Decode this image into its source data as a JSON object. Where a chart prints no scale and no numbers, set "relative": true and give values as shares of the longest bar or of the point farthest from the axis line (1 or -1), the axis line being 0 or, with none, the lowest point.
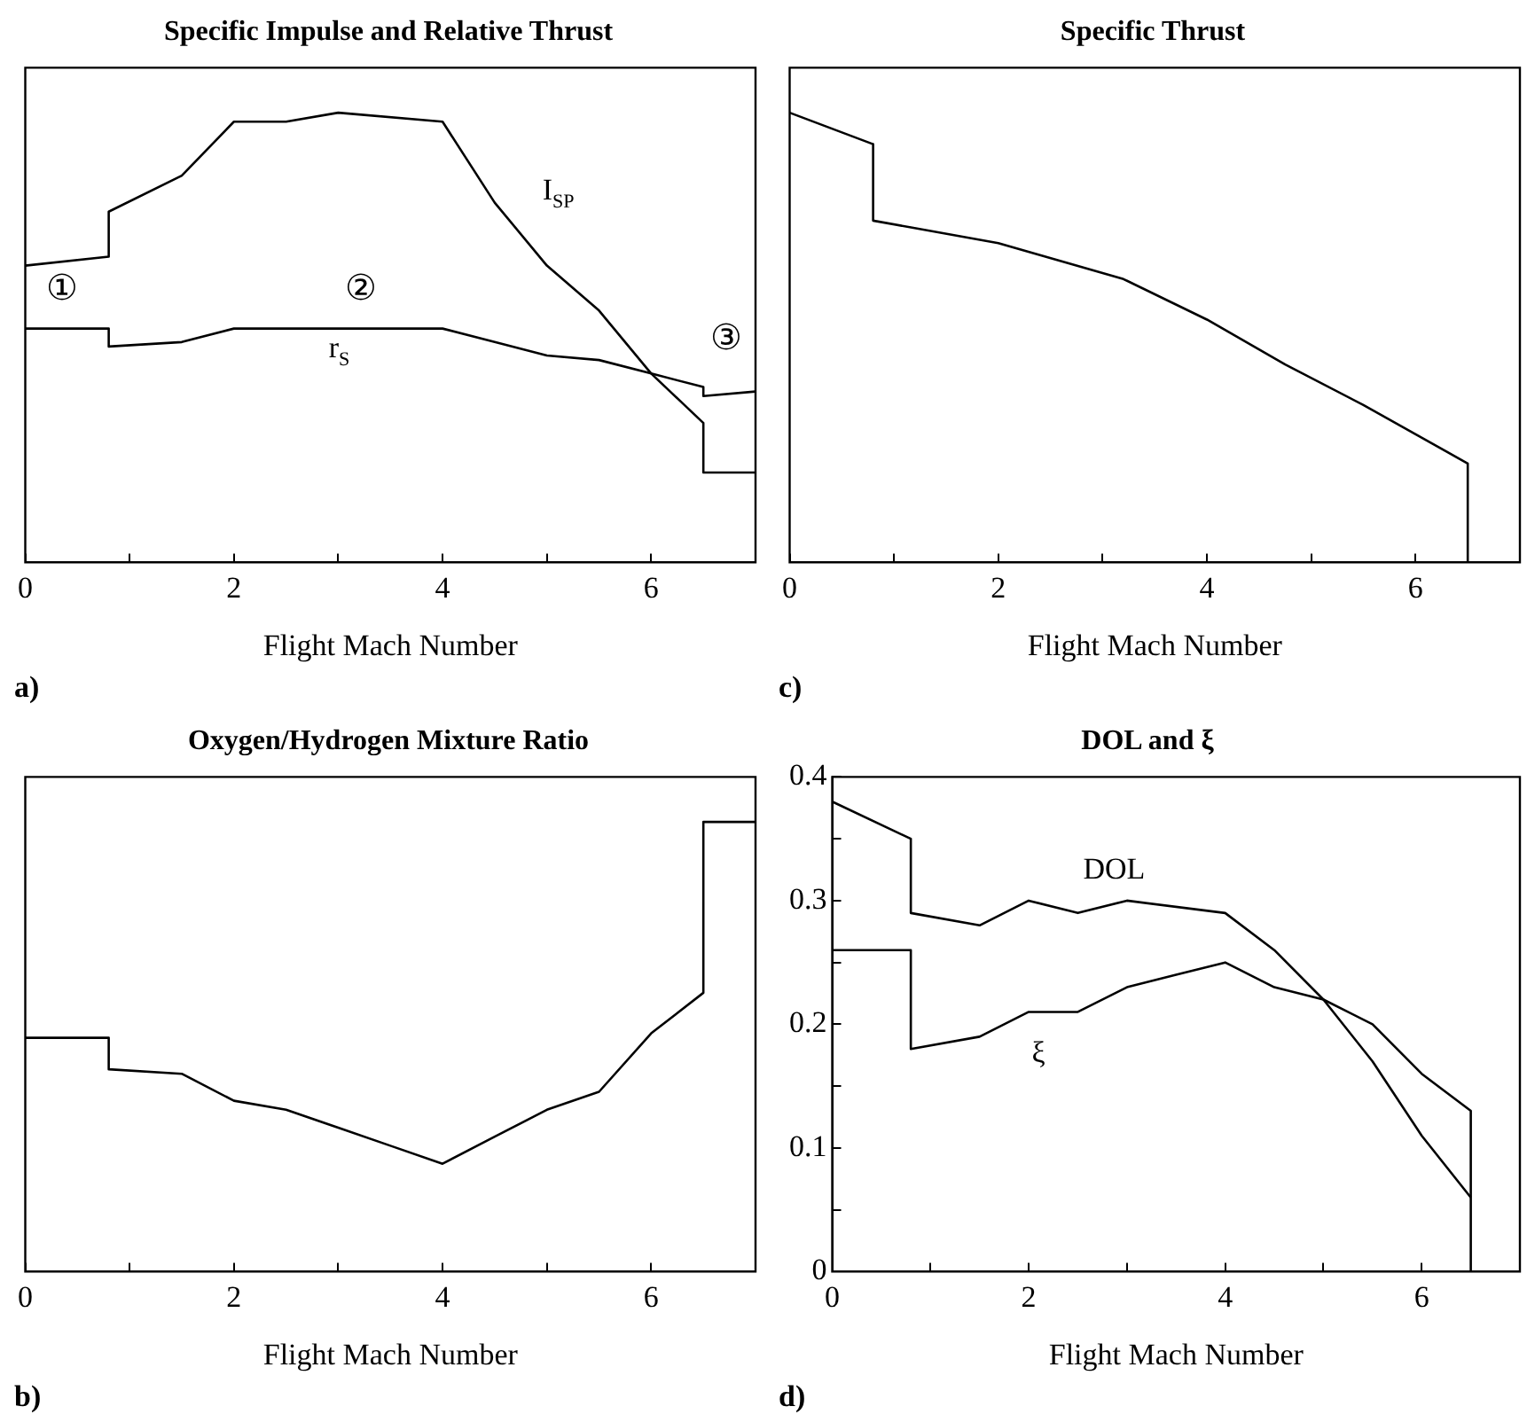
{
  "chart_data": [
    {
      "type": "line",
      "title": "Specific Impulse and Relative Thrust",
      "xlabel": "Flight Mach Number",
      "relative": true,
      "xlim": [
        0,
        7
      ],
      "xticks": [
        0,
        {
          "value": 1,
          "label": null
        },
        2,
        {
          "value": 3,
          "label": null
        },
        4,
        {
          "value": 5,
          "label": null
        },
        6
      ],
      "grid": false,
      "legend": false,
      "marker": "none",
      "line_style": "solid",
      "series": [
        {
          "name": "I$_{SP}$",
          "color": "#000000",
          "x": [
            0,
            0.8,
            0.8,
            1.5,
            2,
            2.5,
            3,
            4,
            4.5,
            5,
            5.5,
            6,
            6.5,
            6.5,
            7
          ],
          "values": [
            0.66,
            0.68,
            0.78,
            0.86,
            0.98,
            0.98,
            1,
            0.98,
            0.8,
            0.66,
            0.56,
            0.42,
            0.31,
            0.2,
            0.2
          ]
        },
        {
          "name": "r$_{S}$",
          "color": "#000000",
          "x": [
            0,
            0.8,
            0.8,
            1.5,
            2,
            4,
            4.5,
            5,
            5.5,
            6,
            6.5,
            6.5,
            7
          ],
          "values": [
            0.52,
            0.52,
            0.48,
            0.49,
            0.52,
            0.52,
            0.49,
            0.46,
            0.45,
            0.42,
            0.39,
            0.37,
            0.38
          ]
        }
      ],
      "annotations": [
        "a)",
        "①",
        "②",
        "③"
      ]
    },
    {
      "type": "line",
      "title": "Specific Thrust",
      "xlabel": "Flight Mach Number",
      "relative": true,
      "xlim": [
        0,
        7
      ],
      "xticks": [
        0,
        {
          "value": 1,
          "label": null
        },
        2,
        {
          "value": 3,
          "label": null
        },
        4,
        {
          "value": 5,
          "label": null
        },
        6
      ],
      "grid": false,
      "legend": false,
      "marker": "none",
      "line_style": "solid",
      "series": [
        {
          "color": "#000000",
          "x": [
            0,
            0.8,
            0.8,
            2,
            2.6,
            3.2,
            4,
            4.75,
            5.5,
            6.5,
            6.5
          ],
          "values": [
            1,
            0.93,
            0.76,
            0.71,
            0.67,
            0.63,
            0.54,
            0.44,
            0.35,
            0.22,
            0
          ]
        }
      ],
      "annotations": [
        "c)"
      ]
    },
    {
      "type": "line",
      "title": "Oxygen/Hydrogen Mixture Ratio",
      "xlabel": "Flight Mach Number",
      "relative": true,
      "xlim": [
        0,
        7
      ],
      "xticks": [
        0,
        {
          "value": 1,
          "label": null
        },
        2,
        {
          "value": 3,
          "label": null
        },
        4,
        {
          "value": 5,
          "label": null
        },
        6
      ],
      "grid": false,
      "legend": false,
      "marker": "none",
      "line_style": "solid",
      "series": [
        {
          "color": "#000000",
          "x": [
            0,
            0.8,
            0.8,
            1.5,
            2,
            2.5,
            3,
            3.5,
            4,
            4.5,
            5,
            5.5,
            6,
            6.5,
            6.5,
            7
          ],
          "values": [
            0.52,
            0.52,
            0.45,
            0.44,
            0.38,
            0.36,
            0.32,
            0.28,
            0.24,
            0.3,
            0.36,
            0.4,
            0.53,
            0.62,
            1,
            1
          ]
        }
      ],
      "annotations": [
        "b)"
      ]
    },
    {
      "type": "line",
      "title": "DOL and ξ",
      "xlabel": "Flight Mach Number",
      "xlim": [
        0,
        7
      ],
      "xticks": [
        0,
        {
          "value": 1,
          "label": null
        },
        2,
        {
          "value": 3,
          "label": null
        },
        4,
        {
          "value": 5,
          "label": null
        },
        6
      ],
      "ylim": [
        0,
        0.4
      ],
      "yticks": [
        0,
        {
          "value": 0.05,
          "label": null
        },
        0.1,
        {
          "value": 0.15,
          "label": null
        },
        0.2,
        {
          "value": 0.25,
          "label": null
        },
        0.3,
        {
          "value": 0.35,
          "label": null
        },
        0.4
      ],
      "grid": false,
      "legend": false,
      "marker": "none",
      "line_style": "solid",
      "series": [
        {
          "name": "DOL",
          "color": "#000000",
          "x": [
            0,
            0.8,
            0.8,
            1.5,
            2,
            2.5,
            3,
            4,
            4.5,
            5,
            5.5,
            6,
            6.5
          ],
          "values": [
            0.38,
            0.35,
            0.29,
            0.28,
            0.3,
            0.29,
            0.3,
            0.29,
            0.26,
            0.22,
            0.17,
            0.11,
            0.06
          ]
        },
        {
          "name": "ξ",
          "color": "#000000",
          "x": [
            0,
            0.8,
            0.8,
            1.5,
            2,
            2.5,
            3,
            3.5,
            4,
            4.5,
            5,
            5.5,
            6,
            6.5,
            6.5
          ],
          "values": [
            0.26,
            0.26,
            0.18,
            0.19,
            0.21,
            0.21,
            0.23,
            0.24,
            0.25,
            0.23,
            0.22,
            0.2,
            0.16,
            0.13,
            0
          ]
        }
      ],
      "annotations": [
        "d)"
      ]
    }
  ]
}
